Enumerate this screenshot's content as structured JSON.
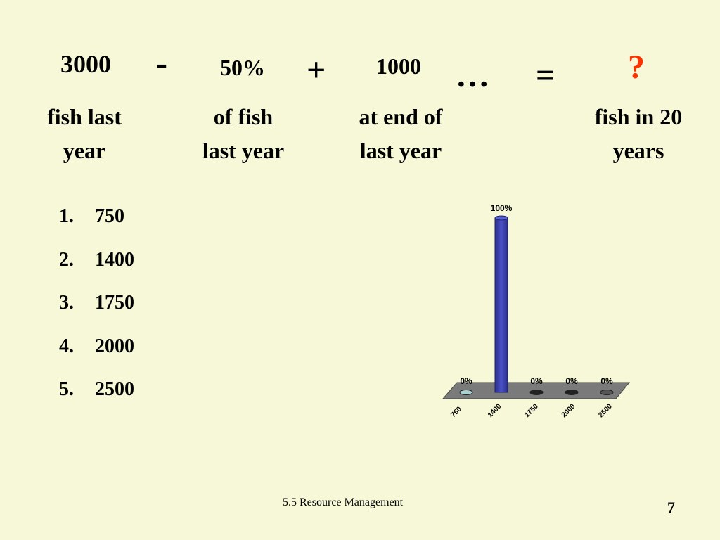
{
  "equation": {
    "term1": "3000",
    "minus": "-",
    "term2": "50%",
    "plus": "+",
    "term3": "1000",
    "ellipsis": "…",
    "equals": "=",
    "result": "?",
    "captions": {
      "fish_last_year_1": "fish last",
      "fish_last_year_2": "year",
      "of_fish_1": "of  fish",
      "of_fish_2": "last year",
      "at_end_1": "at end of",
      "at_end_2": "last year",
      "fish_20_1": "fish in 20",
      "fish_20_2": "years"
    }
  },
  "options": [
    {
      "num": "1.",
      "value": "750"
    },
    {
      "num": "2.",
      "value": "1400"
    },
    {
      "num": "3.",
      "value": "1750"
    },
    {
      "num": "4.",
      "value": "2000"
    },
    {
      "num": "5.",
      "value": "2500"
    }
  ],
  "chart_data": {
    "type": "bar",
    "categories": [
      "750",
      "1400",
      "1750",
      "2000",
      "2500"
    ],
    "values": [
      0,
      100,
      0,
      0,
      0
    ],
    "labels": [
      "0%",
      "100%",
      "0%",
      "0%",
      "0%"
    ],
    "ylim": [
      0,
      100
    ],
    "colors": [
      "#a9d4d2",
      "#3a3fa8",
      "#222222",
      "#222222",
      "#555555"
    ]
  },
  "footer": {
    "section": "5.5  Resource Management",
    "page": "7"
  },
  "colors": {
    "background": "#f6f8d7",
    "result": "#ff3300"
  }
}
